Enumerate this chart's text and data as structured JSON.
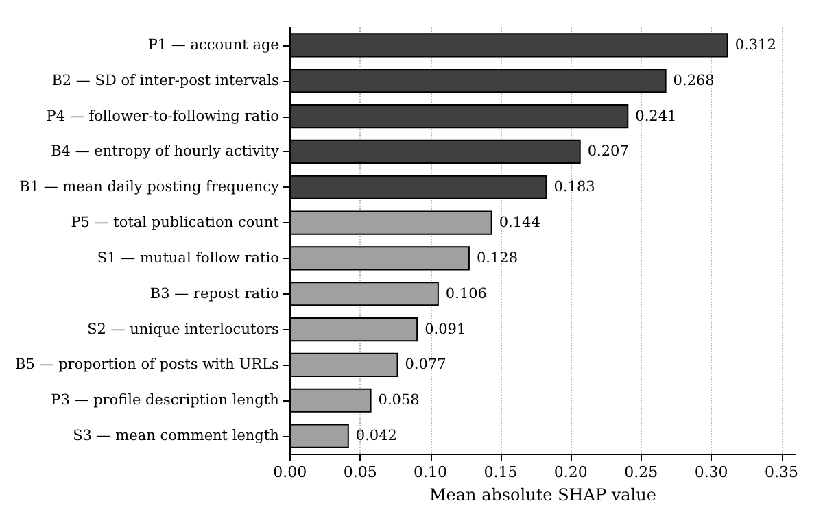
{
  "chart_data": {
    "type": "bar",
    "orientation": "horizontal",
    "xlabel": "Mean absolute SHAP value",
    "categories": [
      "P1 — account age",
      "B2 — SD of inter-post intervals",
      "P4 — follower-to-following ratio",
      "B4 — entropy of hourly activity",
      "B1 — mean daily posting frequency",
      "P5 — total publication count",
      "S1 — mutual follow ratio",
      "B3 — repost ratio",
      "S2 — unique interlocutors",
      "B5 — proportion of posts with URLs",
      "P3 — profile description length",
      "S3 — mean comment length"
    ],
    "values": [
      0.312,
      0.268,
      0.241,
      0.207,
      0.183,
      0.144,
      0.128,
      0.106,
      0.091,
      0.077,
      0.058,
      0.042
    ],
    "colors": [
      "#404040",
      "#404040",
      "#404040",
      "#404040",
      "#404040",
      "#a0a0a0",
      "#a0a0a0",
      "#a0a0a0",
      "#a0a0a0",
      "#a0a0a0",
      "#a0a0a0",
      "#a0a0a0"
    ],
    "xlim": [
      0,
      0.36
    ],
    "xticks": [
      {
        "value": 0,
        "label": "0.00"
      },
      {
        "value": 0.05,
        "label": "0.05"
      },
      {
        "value": 0.1,
        "label": "0.10"
      },
      {
        "value": 0.15,
        "label": "0.15"
      },
      {
        "value": 0.2,
        "label": "0.20"
      },
      {
        "value": 0.25,
        "label": "0.25"
      },
      {
        "value": 0.3,
        "label": "0.30"
      },
      {
        "value": 0.35,
        "label": "0.35"
      }
    ],
    "grid": "x",
    "data_labels": true
  }
}
